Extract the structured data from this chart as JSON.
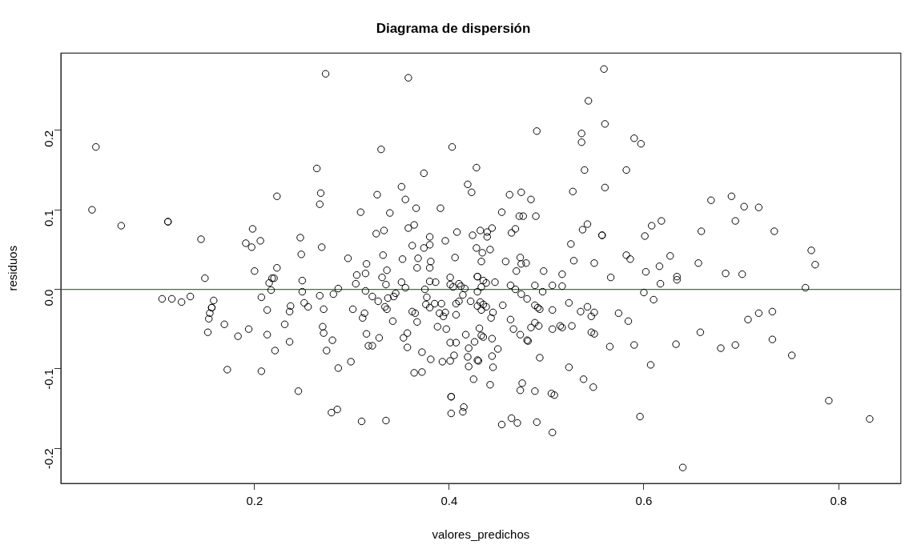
{
  "chart_data": {
    "type": "scatter",
    "title": "Diagrama de dispersión",
    "xlabel": "valores_predichos",
    "ylabel": "residuos",
    "color": "#000000",
    "marker": "circle",
    "grid": false,
    "legend": false,
    "xlim": [
      0.001,
      0.864
    ],
    "xticks": [
      0.2,
      0.4,
      0.6,
      0.8
    ],
    "ylim": [
      -0.244,
      0.297
    ],
    "yticks": [
      -0.2,
      -0.1,
      {
        "value": 0,
        "label": "0.0"
      },
      0.1,
      0.2
    ],
    "ref_lines": [
      {
        "axis": "y",
        "value": 0,
        "color": "#2e7d32"
      }
    ],
    "x": [
      0.273,
      0.037,
      0.264,
      0.223,
      0.268,
      0.267,
      0.033,
      0.063,
      0.111,
      0.111,
      0.145,
      0.198,
      0.191,
      0.197,
      0.206,
      0.247,
      0.248,
      0.269,
      0.358,
      0.559,
      0.543,
      0.56,
      0.49,
      0.536,
      0.536,
      0.33,
      0.403,
      0.539,
      0.428,
      0.374,
      0.351,
      0.419,
      0.423,
      0.326,
      0.355,
      0.462,
      0.474,
      0.484,
      0.527,
      0.56,
      0.309,
      0.339,
      0.366,
      0.391,
      0.454,
      0.472,
      0.476,
      0.489,
      0.325,
      0.333,
      0.358,
      0.364,
      0.38,
      0.408,
      0.424,
      0.432,
      0.439,
      0.444,
      0.439,
      0.464,
      0.468,
      0.537,
      0.542,
      0.557,
      0.557,
      0.362,
      0.38,
      0.374,
      0.396,
      0.428,
      0.434,
      0.442,
      0.525,
      0.296,
      0.315,
      0.332,
      0.352,
      0.368,
      0.381,
      0.406,
      0.433,
      0.458,
      0.473,
      0.474,
      0.479,
      0.528,
      0.549,
      0.59,
      0.597,
      0.582,
      0.669,
      0.69,
      0.703,
      0.718,
      0.618,
      0.608,
      0.601,
      0.694,
      0.659,
      0.734,
      0.582,
      0.586,
      0.627,
      0.616,
      0.656,
      0.772,
      0.776,
      0.2,
      0.223,
      0.149,
      0.218,
      0.22,
      0.215,
      0.217,
      0.249,
      0.249,
      0.286,
      0.105,
      0.115,
      0.125,
      0.134,
      0.158,
      0.156,
      0.156,
      0.154,
      0.153,
      0.152,
      0.207,
      0.213,
      0.237,
      0.236,
      0.251,
      0.255,
      0.267,
      0.281,
      0.271,
      0.169,
      0.194,
      0.183,
      0.213,
      0.231,
      0.236,
      0.221,
      0.27,
      0.271,
      0.28,
      0.274,
      0.172,
      0.207,
      0.286,
      0.245,
      0.279,
      0.285,
      0.367,
      0.38,
      0.336,
      0.305,
      0.314,
      0.331,
      0.304,
      0.335,
      0.351,
      0.355,
      0.38,
      0.386,
      0.401,
      0.401,
      0.404,
      0.41,
      0.412,
      0.416,
      0.429,
      0.429,
      0.435,
      0.438,
      0.433,
      0.447,
      0.469,
      0.497,
      0.516,
      0.566,
      0.463,
      0.468,
      0.488,
      0.506,
      0.516,
      0.496,
      0.375,
      0.314,
      0.429,
      0.321,
      0.327,
      0.337,
      0.343,
      0.345,
      0.377,
      0.414,
      0.474,
      0.48,
      0.422,
      0.41,
      0.407,
      0.392,
      0.385,
      0.376,
      0.38,
      0.432,
      0.435,
      0.429,
      0.438,
      0.433,
      0.455,
      0.488,
      0.491,
      0.493,
      0.523,
      0.506,
      0.542,
      0.535,
      0.549,
      0.546,
      0.574,
      0.301,
      0.334,
      0.336,
      0.313,
      0.311,
      0.362,
      0.365,
      0.39,
      0.396,
      0.394,
      0.407,
      0.445,
      0.443,
      0.463,
      0.342,
      0.367,
      0.388,
      0.397,
      0.431,
      0.466,
      0.484,
      0.488,
      0.492,
      0.506,
      0.514,
      0.516,
      0.526,
      0.315,
      0.328,
      0.353,
      0.357,
      0.417,
      0.433,
      0.435,
      0.444,
      0.426,
      0.401,
      0.407,
      0.473,
      0.48,
      0.481,
      0.546,
      0.549,
      0.317,
      0.321,
      0.357,
      0.42,
      0.45,
      0.565,
      0.372,
      0.405,
      0.419,
      0.444,
      0.429,
      0.43,
      0.381,
      0.393,
      0.401,
      0.299,
      0.42,
      0.445,
      0.493,
      0.523,
      0.364,
      0.372,
      0.425,
      0.442,
      0.475,
      0.473,
      0.488,
      0.505,
      0.508,
      0.538,
      0.548,
      0.402,
      0.402,
      0.415,
      0.414,
      0.402,
      0.31,
      0.335,
      0.454,
      0.464,
      0.47,
      0.49,
      0.506,
      0.602,
      0.684,
      0.701,
      0.617,
      0.634,
      0.634,
      0.6,
      0.61,
      0.766,
      0.584,
      0.707,
      0.718,
      0.732,
      0.658,
      0.59,
      0.633,
      0.679,
      0.694,
      0.732,
      0.752,
      0.607,
      0.79,
      0.832,
      0.596,
      0.64
    ],
    "values": [
      0.271,
      0.179,
      0.152,
      0.117,
      0.121,
      0.107,
      0.1,
      0.08,
      0.085,
      0.085,
      0.063,
      0.076,
      0.058,
      0.053,
      0.061,
      0.065,
      0.044,
      0.053,
      0.266,
      0.277,
      0.237,
      0.208,
      0.199,
      0.196,
      0.185,
      0.176,
      0.179,
      0.15,
      0.153,
      0.146,
      0.129,
      0.132,
      0.122,
      0.119,
      0.113,
      0.119,
      0.122,
      0.113,
      0.123,
      0.128,
      0.097,
      0.096,
      0.102,
      0.102,
      0.097,
      0.092,
      0.092,
      0.092,
      0.07,
      0.074,
      0.077,
      0.081,
      0.066,
      0.072,
      0.068,
      0.074,
      0.072,
      0.077,
      0.066,
      0.071,
      0.076,
      0.075,
      0.082,
      0.068,
      0.068,
      0.055,
      0.056,
      0.052,
      0.061,
      0.052,
      0.046,
      0.05,
      0.057,
      0.039,
      0.032,
      0.043,
      0.038,
      0.039,
      0.035,
      0.04,
      0.035,
      0.035,
      0.04,
      0.032,
      0.033,
      0.036,
      0.033,
      0.19,
      0.183,
      0.15,
      0.112,
      0.117,
      0.104,
      0.103,
      0.086,
      0.08,
      0.067,
      0.086,
      0.073,
      0.073,
      0.043,
      0.038,
      0.042,
      0.029,
      0.033,
      0.049,
      0.031,
      0.023,
      0.027,
      0.014,
      0.014,
      0.014,
      0.008,
      -0.001,
      0.011,
      -0.003,
      0.001,
      -0.012,
      -0.012,
      -0.016,
      -0.009,
      -0.014,
      -0.023,
      -0.023,
      -0.03,
      -0.037,
      -0.054,
      -0.01,
      -0.026,
      -0.021,
      -0.028,
      -0.017,
      -0.022,
      -0.008,
      -0.006,
      -0.025,
      -0.044,
      -0.05,
      -0.059,
      -0.057,
      -0.044,
      -0.066,
      -0.077,
      -0.047,
      -0.055,
      -0.064,
      -0.077,
      -0.101,
      -0.103,
      -0.099,
      -0.128,
      -0.155,
      -0.151,
      0.027,
      0.027,
      0.024,
      0.018,
      0.02,
      0.015,
      0.007,
      0.006,
      0.009,
      0.002,
      0.01,
      0.009,
      0.015,
      0.006,
      0.003,
      0.007,
      0.004,
      0.001,
      0.016,
      0.016,
      0.011,
      0.008,
      0.003,
      0.009,
      0.023,
      0.023,
      0.019,
      0.015,
      0.005,
      0.0,
      0.005,
      0.005,
      0.004,
      -0.003,
      0.0,
      -0.002,
      -0.003,
      -0.009,
      -0.015,
      -0.011,
      -0.009,
      -0.005,
      -0.01,
      -0.007,
      -0.006,
      -0.012,
      -0.015,
      -0.015,
      -0.018,
      -0.018,
      -0.018,
      -0.019,
      -0.023,
      -0.016,
      -0.019,
      -0.021,
      -0.022,
      -0.026,
      -0.02,
      -0.02,
      -0.023,
      -0.025,
      -0.017,
      -0.026,
      -0.022,
      -0.028,
      -0.029,
      -0.034,
      -0.03,
      -0.025,
      -0.022,
      -0.025,
      -0.03,
      -0.036,
      -0.028,
      -0.03,
      -0.03,
      -0.029,
      -0.034,
      -0.032,
      -0.029,
      -0.036,
      -0.038,
      -0.04,
      -0.041,
      -0.047,
      -0.05,
      -0.049,
      -0.05,
      -0.048,
      -0.042,
      -0.046,
      -0.05,
      -0.046,
      -0.048,
      -0.046,
      -0.056,
      -0.061,
      -0.061,
      -0.055,
      -0.057,
      -0.058,
      -0.06,
      -0.062,
      -0.066,
      -0.067,
      -0.067,
      -0.057,
      -0.064,
      -0.065,
      -0.054,
      -0.056,
      -0.071,
      -0.071,
      -0.073,
      -0.074,
      -0.075,
      -0.072,
      -0.079,
      -0.083,
      -0.085,
      -0.084,
      -0.089,
      -0.09,
      -0.088,
      -0.091,
      -0.09,
      -0.091,
      -0.097,
      -0.098,
      -0.086,
      -0.098,
      -0.105,
      -0.104,
      -0.113,
      -0.12,
      -0.118,
      -0.127,
      -0.128,
      -0.131,
      -0.133,
      -0.113,
      -0.123,
      -0.135,
      -0.135,
      -0.148,
      -0.154,
      -0.156,
      -0.166,
      -0.165,
      -0.17,
      -0.162,
      -0.168,
      -0.167,
      -0.18,
      0.022,
      0.02,
      0.019,
      0.007,
      0.016,
      0.012,
      -0.004,
      -0.013,
      0.002,
      -0.04,
      -0.038,
      -0.03,
      -0.028,
      -0.054,
      -0.07,
      -0.069,
      -0.074,
      -0.07,
      -0.063,
      -0.083,
      -0.095,
      -0.14,
      -0.163,
      -0.16,
      -0.224
    ]
  }
}
